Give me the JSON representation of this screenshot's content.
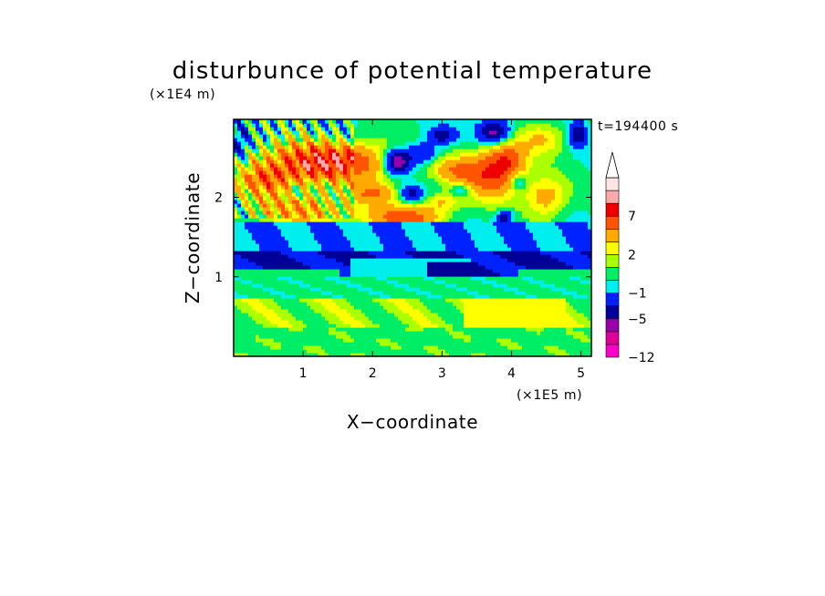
{
  "chart_data": {
    "type": "heatmap",
    "title": "disturbunce of potential temperature",
    "xlabel": "X−coordinate",
    "ylabel": "Z−coordinate",
    "x_unit": "(×1E5 m)",
    "y_unit": "(×1E4 m)",
    "time_label": "t=194400 s",
    "xlim": [
      0,
      5.15
    ],
    "ylim": [
      0,
      2.98
    ],
    "x_ticks": [
      1,
      2,
      3,
      4,
      5
    ],
    "y_ticks": [
      1,
      2
    ],
    "colorbar": {
      "levels": [
        -12,
        -9,
        -7,
        -5,
        -3,
        -1,
        0,
        1,
        2,
        3,
        5,
        7,
        9,
        11
      ],
      "labels": [
        "−12",
        "−5",
        "−1",
        "2",
        "7"
      ],
      "colors": [
        "#ff00cc",
        "#dd0099",
        "#9900aa",
        "#000099",
        "#0022ff",
        "#00eeee",
        "#00ee66",
        "#aaff00",
        "#ffff00",
        "#ffaa00",
        "#ff5500",
        "#ee0000",
        "#ffaaaa",
        "#ffe4e4"
      ],
      "extend": "max",
      "grid": false
    },
    "bands": [
      {
        "z_from": 0.0,
        "z_to": 0.35,
        "value_range": "0 to 2",
        "description": "mixed green/yellow near surface"
      },
      {
        "z_from": 0.35,
        "z_to": 0.75,
        "value_range": "1 to 2",
        "description": "yellow layer, strongest at x 3.3-4.8"
      },
      {
        "z_from": 0.75,
        "z_to": 1.0,
        "value_range": "0 to 1",
        "description": "green layer"
      },
      {
        "z_from": 1.0,
        "z_to": 1.35,
        "value_range": "-5 to -1",
        "description": "blue / cyan cold layer"
      },
      {
        "z_from": 1.35,
        "z_to": 1.7,
        "value_range": "-1",
        "description": "cyan layer"
      },
      {
        "z_from": 1.7,
        "z_to": 2.98,
        "value_range": "-9 to 9",
        "description": "wave pattern with warm and cold cells"
      }
    ]
  }
}
